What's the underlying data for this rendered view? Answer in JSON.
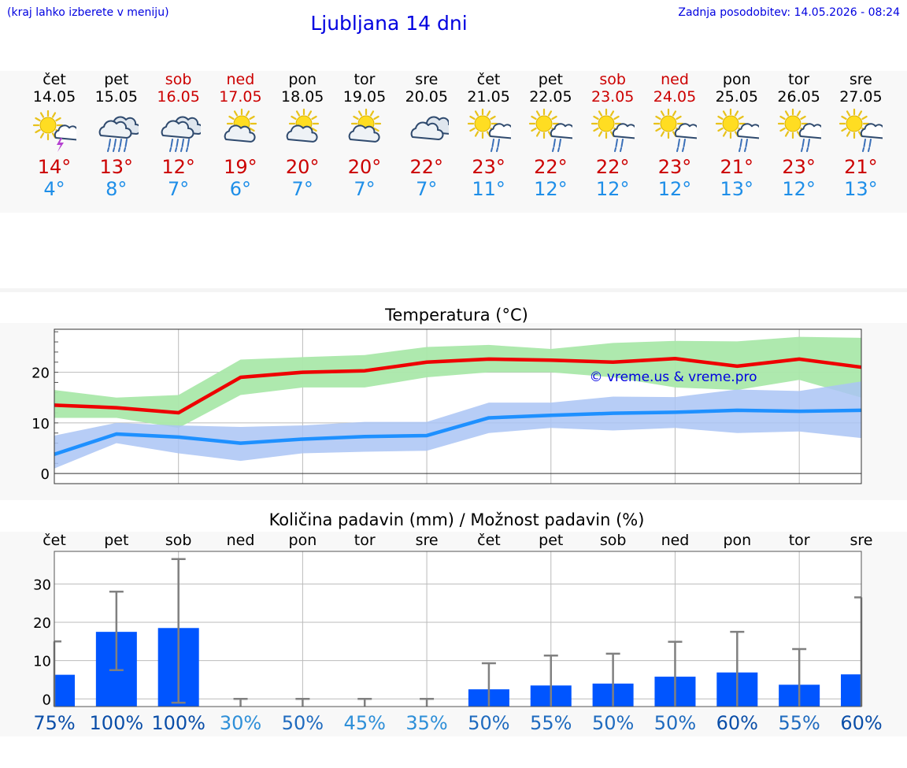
{
  "header": {
    "hint": "(kraj lahko izberete v meniju)",
    "title": "Ljubljana 14 dni",
    "updated": "Zadnja posodobitev: 14.05.2026 - 08:24"
  },
  "days": [
    {
      "name": "čet",
      "date": "14.05",
      "weekend": false,
      "icon": "sun-cloud-thunder-icon",
      "tmax": "14°",
      "tmin": "4°"
    },
    {
      "name": "pet",
      "date": "15.05",
      "weekend": false,
      "icon": "heavy-rain-cloud-icon",
      "tmax": "13°",
      "tmin": "8°"
    },
    {
      "name": "sob",
      "date": "16.05",
      "weekend": true,
      "icon": "heavy-rain-cloud-icon",
      "tmax": "12°",
      "tmin": "7°"
    },
    {
      "name": "ned",
      "date": "17.05",
      "weekend": true,
      "icon": "sun-cloud-icon",
      "tmax": "19°",
      "tmin": "6°"
    },
    {
      "name": "pon",
      "date": "18.05",
      "weekend": false,
      "icon": "sun-cloud-icon",
      "tmax": "20°",
      "tmin": "7°"
    },
    {
      "name": "tor",
      "date": "19.05",
      "weekend": false,
      "icon": "sun-cloud-icon",
      "tmax": "20°",
      "tmin": "7°"
    },
    {
      "name": "sre",
      "date": "20.05",
      "weekend": false,
      "icon": "cloudy-icon",
      "tmax": "22°",
      "tmin": "7°"
    },
    {
      "name": "čet",
      "date": "21.05",
      "weekend": false,
      "icon": "sun-cloud-rain-icon",
      "tmax": "23°",
      "tmin": "11°"
    },
    {
      "name": "pet",
      "date": "22.05",
      "weekend": false,
      "icon": "sun-cloud-rain-icon",
      "tmax": "22°",
      "tmin": "12°"
    },
    {
      "name": "sob",
      "date": "23.05",
      "weekend": true,
      "icon": "sun-cloud-rain-icon",
      "tmax": "22°",
      "tmin": "12°"
    },
    {
      "name": "ned",
      "date": "24.05",
      "weekend": true,
      "icon": "sun-cloud-rain-icon",
      "tmax": "23°",
      "tmin": "12°"
    },
    {
      "name": "pon",
      "date": "25.05",
      "weekend": false,
      "icon": "sun-cloud-rain-icon",
      "tmax": "21°",
      "tmin": "13°"
    },
    {
      "name": "tor",
      "date": "26.05",
      "weekend": false,
      "icon": "sun-cloud-rain-icon",
      "tmax": "23°",
      "tmin": "12°"
    },
    {
      "name": "sre",
      "date": "27.05",
      "weekend": false,
      "icon": "sun-cloud-rain-icon",
      "tmax": "21°",
      "tmin": "13°"
    }
  ],
  "colors": {
    "max_line": "#ee0000",
    "min_line": "#1e90ff",
    "max_band": "#aae8aa",
    "min_band": "#aac4f4",
    "precip_bar": "#0055ff",
    "error_bar": "#808080",
    "header_text": "#0000e0",
    "weekend_text": "#cc0000"
  },
  "chart_data": [
    {
      "type": "line",
      "title": "Temperatura (°C)",
      "watermark": "© vreme.us & vreme.pro",
      "categories": [
        "čet",
        "pet",
        "sob",
        "ned",
        "pon",
        "tor",
        "sre",
        "čet",
        "pet",
        "sob",
        "ned",
        "pon",
        "tor",
        "sre"
      ],
      "yticks": [
        0,
        10,
        20
      ],
      "ylim": [
        -2,
        28.5
      ],
      "grid": true,
      "series": [
        {
          "role": "max",
          "values": [
            13.5,
            13,
            12,
            19,
            20,
            20.3,
            22,
            22.6,
            22.4,
            22,
            22.7,
            21.2,
            22.6,
            21
          ]
        },
        {
          "role": "min",
          "values": [
            3.8,
            7.8,
            7.2,
            6,
            6.8,
            7.3,
            7.5,
            11,
            11.5,
            11.9,
            12.1,
            12.5,
            12.3,
            12.5
          ]
        }
      ],
      "bands": [
        {
          "role": "max-range",
          "low": [
            11,
            11,
            9,
            15.5,
            17,
            17,
            19,
            20,
            20,
            19,
            17,
            16.5,
            18.5,
            15
          ],
          "high": [
            16.5,
            15,
            15.5,
            22.5,
            23,
            23.4,
            25,
            25.4,
            24.6,
            25.8,
            26.2,
            26.1,
            27,
            26.8
          ]
        },
        {
          "role": "min-range",
          "low": [
            1,
            6,
            4,
            2.5,
            4,
            4.3,
            4.5,
            8,
            9,
            8.5,
            9,
            8,
            8.3,
            7
          ]
        },
        {
          "role": "min-range-high",
          "values": [
            7.5,
            10,
            9.5,
            9.2,
            9.5,
            10.2,
            10.2,
            14,
            14,
            15.2,
            15.1,
            16.6,
            16.3,
            18.2
          ]
        }
      ]
    },
    {
      "type": "bar",
      "title": "Količina padavin (mm) / Možnost padavin (%)",
      "categories": [
        "čet",
        "pet",
        "sob",
        "ned",
        "pon",
        "tor",
        "sre",
        "čet",
        "pet",
        "sob",
        "ned",
        "pon",
        "tor",
        "sre"
      ],
      "yticks": [
        0,
        10,
        20,
        30
      ],
      "ylim": [
        -2,
        38.5
      ],
      "grid": true,
      "values": [
        6.3,
        17.5,
        18.5,
        0,
        0,
        0,
        0,
        2.5,
        3.5,
        4,
        5.8,
        6.9,
        3.7,
        6.4
      ],
      "error_low": [
        null,
        7.5,
        -1,
        null,
        null,
        null,
        null,
        null,
        null,
        null,
        null,
        null,
        null,
        null
      ],
      "error_high": [
        15,
        28,
        36.5,
        0,
        0,
        0,
        0,
        9.3,
        11.3,
        11.8,
        14.9,
        17.5,
        13,
        26.5
      ],
      "probabilities": [
        "75%",
        "100%",
        "100%",
        "30%",
        "50%",
        "45%",
        "35%",
        "50%",
        "55%",
        "50%",
        "50%",
        "60%",
        "55%",
        "60%"
      ]
    }
  ]
}
